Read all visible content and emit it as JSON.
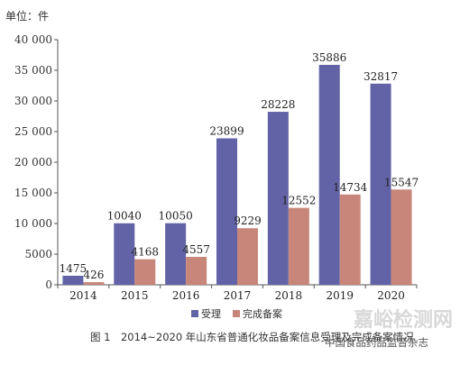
{
  "chart_data": {
    "type": "bar",
    "unit_label": "单位：件",
    "categories": [
      "2014",
      "2015",
      "2016",
      "2017",
      "2018",
      "2019",
      "2020"
    ],
    "series": [
      {
        "name": "受理",
        "color": "#6263a6",
        "values": [
          1475,
          10040,
          10050,
          23899,
          28228,
          35886,
          32817
        ]
      },
      {
        "name": "完成备案",
        "color": "#c8867a",
        "values": [
          426,
          4168,
          4557,
          9229,
          12552,
          14734,
          15547
        ]
      }
    ],
    "ylim": [
      0,
      40000
    ],
    "yticks": [
      0,
      5000,
      10000,
      15000,
      20000,
      25000,
      30000,
      35000,
      40000
    ],
    "ytick_labels": [
      "0",
      "5000",
      "10 000",
      "15 000",
      "20 000",
      "25 000",
      "30 000",
      "35 000",
      "40 000"
    ],
    "grid": false,
    "legend_position": "bottom",
    "caption": "图 1　2014~2020 年山东省普通化妆品备案信息受理及完成备案情况"
  },
  "watermark": {
    "main": "嘉峪检测网",
    "account": "中国食品药品监督杂志"
  }
}
